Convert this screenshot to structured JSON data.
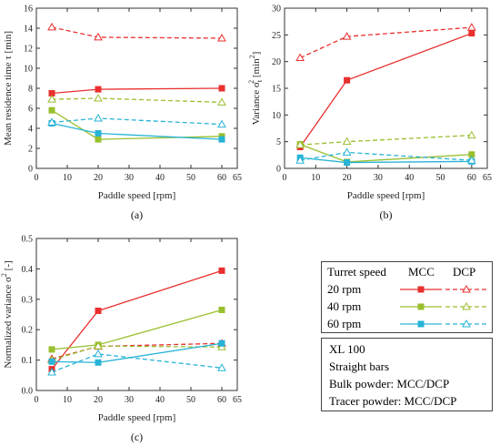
{
  "chart_data": [
    {
      "type": "line",
      "panel_label": "(a)",
      "xlabel": "Paddle speed [rpm]",
      "ylabel": "Mean residence time τ [min]",
      "xlim": [
        0,
        65
      ],
      "ylim": [
        0,
        16
      ],
      "xticks": [
        0,
        10,
        20,
        30,
        40,
        50,
        60,
        65
      ],
      "yticks": [
        0,
        2,
        4,
        6,
        8,
        10,
        12,
        14,
        16
      ],
      "x": [
        5,
        20,
        60
      ],
      "series": [
        {
          "name": "MCC 20 rpm",
          "color": "#e8302f",
          "dash": false,
          "marker": "square",
          "values": [
            7.5,
            7.9,
            8.0
          ]
        },
        {
          "name": "DCP 20 rpm",
          "color": "#e8302f",
          "dash": true,
          "marker": "triangle",
          "values": [
            14.1,
            13.1,
            13.0
          ]
        },
        {
          "name": "MCC 40 rpm",
          "color": "#99bf2f",
          "dash": false,
          "marker": "square",
          "values": [
            5.8,
            2.9,
            3.2
          ]
        },
        {
          "name": "DCP 40 rpm",
          "color": "#99bf2f",
          "dash": true,
          "marker": "triangle",
          "values": [
            6.9,
            7.0,
            6.6
          ]
        },
        {
          "name": "MCC 60 rpm",
          "color": "#27b3d6",
          "dash": false,
          "marker": "square",
          "values": [
            4.5,
            3.5,
            2.9
          ]
        },
        {
          "name": "DCP 60 rpm",
          "color": "#27b3d6",
          "dash": true,
          "marker": "triangle",
          "values": [
            4.6,
            5.0,
            4.4
          ]
        }
      ]
    },
    {
      "type": "line",
      "panel_label": "(b)",
      "xlabel": "Paddle speed [rpm]",
      "ylabel": "Variance σ",
      "ylabel_sub": "t",
      "ylabel_sup": "2",
      "ylabel_unit": " [min",
      "ylabel_unit_sup": "2",
      "ylabel_unit_end": "]",
      "xlim": [
        0,
        65
      ],
      "ylim": [
        0,
        30
      ],
      "xticks": [
        0,
        10,
        20,
        30,
        40,
        50,
        60,
        65
      ],
      "yticks": [
        0,
        5,
        10,
        15,
        20,
        25,
        30
      ],
      "x": [
        5,
        20,
        60
      ],
      "series": [
        {
          "name": "MCC 20 rpm",
          "color": "#e8302f",
          "dash": false,
          "marker": "square",
          "values": [
            4.0,
            16.5,
            25.3
          ]
        },
        {
          "name": "DCP 20 rpm",
          "color": "#e8302f",
          "dash": true,
          "marker": "triangle",
          "values": [
            20.7,
            24.7,
            26.4
          ]
        },
        {
          "name": "MCC 40 rpm",
          "color": "#99bf2f",
          "dash": false,
          "marker": "square",
          "values": [
            4.5,
            1.2,
            2.6
          ]
        },
        {
          "name": "DCP 40 rpm",
          "color": "#99bf2f",
          "dash": true,
          "marker": "triangle",
          "values": [
            4.4,
            5.0,
            6.2
          ]
        },
        {
          "name": "MCC 60 rpm",
          "color": "#27b3d6",
          "dash": false,
          "marker": "square",
          "values": [
            2.0,
            1.1,
            1.3
          ]
        },
        {
          "name": "DCP 60 rpm",
          "color": "#27b3d6",
          "dash": true,
          "marker": "triangle",
          "values": [
            1.5,
            3.0,
            1.5
          ]
        }
      ]
    },
    {
      "type": "line",
      "panel_label": "(c)",
      "xlabel": "Paddle speed [rpm]",
      "ylabel": "Normalized variance σ",
      "ylabel_sup": "2",
      "ylabel_unit": " [-]",
      "xlim": [
        0,
        65
      ],
      "ylim": [
        0.0,
        0.5
      ],
      "xticks": [
        0,
        10,
        20,
        30,
        40,
        50,
        60,
        65
      ],
      "yticks": [
        0.0,
        0.1,
        0.2,
        0.3,
        0.4,
        0.5
      ],
      "x": [
        5,
        20,
        60
      ],
      "series": [
        {
          "name": "MCC 20 rpm",
          "color": "#e8302f",
          "dash": false,
          "marker": "square",
          "values": [
            0.07,
            0.262,
            0.394
          ]
        },
        {
          "name": "DCP 20 rpm",
          "color": "#e8302f",
          "dash": true,
          "marker": "triangle",
          "values": [
            0.104,
            0.145,
            0.155
          ]
        },
        {
          "name": "MCC 40 rpm",
          "color": "#99bf2f",
          "dash": false,
          "marker": "square",
          "values": [
            0.135,
            0.15,
            0.265
          ]
        },
        {
          "name": "DCP 40 rpm",
          "color": "#99bf2f",
          "dash": true,
          "marker": "triangle",
          "values": [
            0.1,
            0.146,
            0.143
          ]
        },
        {
          "name": "MCC 60 rpm",
          "color": "#27b3d6",
          "dash": false,
          "marker": "square",
          "values": [
            0.095,
            0.092,
            0.155
          ]
        },
        {
          "name": "DCP 60 rpm",
          "color": "#27b3d6",
          "dash": true,
          "marker": "triangle",
          "values": [
            0.06,
            0.12,
            0.074
          ]
        }
      ]
    }
  ],
  "legend": {
    "header": {
      "col1": "Turret speed",
      "col2": "MCC",
      "col3": "DCP"
    },
    "rows": [
      {
        "label": "20 rpm",
        "color": "#e8302f"
      },
      {
        "label": "40 rpm",
        "color": "#99bf2f"
      },
      {
        "label": "60 rpm",
        "color": "#27b3d6"
      }
    ]
  },
  "info": {
    "lines": [
      "XL 100",
      "Straight bars",
      "Bulk powder: MCC/DCP",
      "Tracer powder: MCC/DCP"
    ]
  }
}
